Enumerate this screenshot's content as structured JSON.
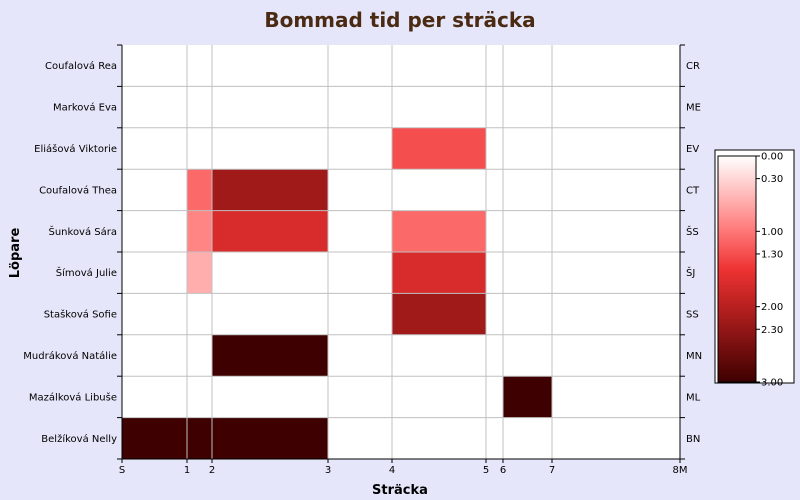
{
  "chart_data": {
    "type": "heatmap",
    "title": "Bommad tid per sträcka",
    "xlabel": "Sträcka",
    "ylabel": "Löpare",
    "x_ticks": [
      {
        "label": "S",
        "value": 0
      },
      {
        "label": "1",
        "value": 1
      },
      {
        "label": "2",
        "value": 2
      },
      {
        "label": "3",
        "value": 3
      },
      {
        "label": "4",
        "value": 4
      },
      {
        "label": "5",
        "value": 5
      },
      {
        "label": "6",
        "value": 6
      },
      {
        "label": "7",
        "value": 7
      },
      {
        "label": "8M",
        "value": 8
      }
    ],
    "runners": [
      {
        "name": "Coufalová Rea",
        "code": "CR"
      },
      {
        "name": "Marková Eva",
        "code": "ME"
      },
      {
        "name": "Eliášová Viktorie",
        "code": "EV"
      },
      {
        "name": "Coufalová Thea",
        "code": "CT"
      },
      {
        "name": "Šunková Sára",
        "code": "ŠS"
      },
      {
        "name": "Šímová Julie",
        "code": "ŠJ"
      },
      {
        "name": "Stašková Sofie",
        "code": "SS"
      },
      {
        "name": "Mudráková Natálie",
        "code": "MN"
      },
      {
        "name": "Mazálková Libuše",
        "code": "ML"
      },
      {
        "name": "Belžíková Nelly",
        "code": "BN"
      }
    ],
    "cells": [
      {
        "runner": "Eliášová Viktorie",
        "from": 4,
        "to": 5,
        "value": 1.3
      },
      {
        "runner": "Coufalová Thea",
        "from": 1,
        "to": 2,
        "value": 1.1
      },
      {
        "runner": "Coufalová Thea",
        "from": 2,
        "to": 3,
        "value": 2.2
      },
      {
        "runner": "Šunková Sára",
        "from": 1,
        "to": 2,
        "value": 0.9
      },
      {
        "runner": "Šunková Sára",
        "from": 2,
        "to": 3,
        "value": 1.7
      },
      {
        "runner": "Šunková Sára",
        "from": 4,
        "to": 5,
        "value": 1.1
      },
      {
        "runner": "Šímová Julie",
        "from": 1,
        "to": 2,
        "value": 0.6
      },
      {
        "runner": "Šímová Julie",
        "from": 4,
        "to": 5,
        "value": 1.7
      },
      {
        "runner": "Stašková Sofie",
        "from": 4,
        "to": 5,
        "value": 2.2
      },
      {
        "runner": "Mudráková Natálie",
        "from": 2,
        "to": 3,
        "value": 3.0
      },
      {
        "runner": "Mazálková Libuše",
        "from": 6,
        "to": 7,
        "value": 3.0
      },
      {
        "runner": "Belžíková Nelly",
        "from": 0,
        "to": 1,
        "value": 3.0
      },
      {
        "runner": "Belžíková Nelly",
        "from": 1,
        "to": 2,
        "value": 3.0
      },
      {
        "runner": "Belžíková Nelly",
        "from": 2,
        "to": 3,
        "value": 3.0
      }
    ],
    "colorbar": {
      "range": [
        0,
        3
      ],
      "ticks": [
        {
          "label": "0.00",
          "value": 0
        },
        {
          "label": "0.30",
          "value": 0.3
        },
        {
          "label": "1.00",
          "value": 1.0
        },
        {
          "label": "1.30",
          "value": 1.3
        },
        {
          "label": "2.00",
          "value": 2.0
        },
        {
          "label": "2.30",
          "value": 2.3
        },
        {
          "label": "3.00",
          "value": 3.0
        }
      ],
      "stops": [
        {
          "value": 0,
          "color": "#ffffff"
        },
        {
          "value": 1.0,
          "color": "#ff7777"
        },
        {
          "value": 1.5,
          "color": "#ee3333"
        },
        {
          "value": 2.0,
          "color": "#b82020"
        },
        {
          "value": 3.0,
          "color": "#3e0000"
        }
      ],
      "placement": "right"
    },
    "colors": {
      "background": "#e6e6fa",
      "plot_background": "#ffffff",
      "grid": "#c0c0c0",
      "title": "#4a2a12"
    },
    "grid": true
  }
}
